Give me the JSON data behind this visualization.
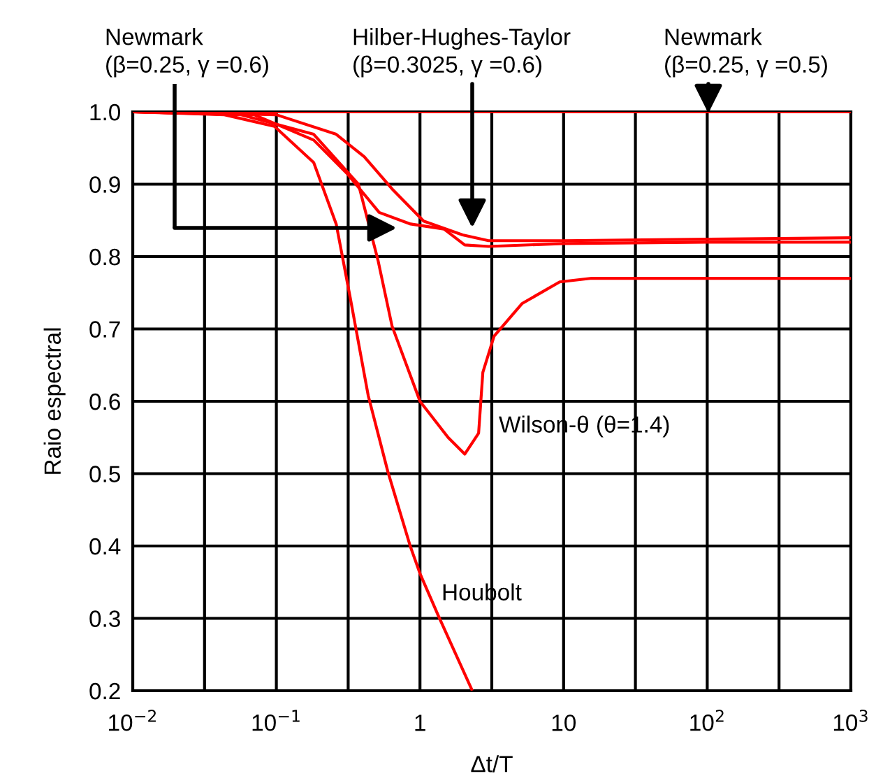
{
  "chart_data": {
    "type": "line",
    "xlabel": "Δt/T",
    "ylabel": "Raio espectral",
    "log": "x",
    "xlim": [
      0.01,
      1000
    ],
    "xticks": [
      {
        "value": 0.01,
        "label": "10$^{−2}$"
      },
      {
        "value": 0.1,
        "label": "10$^{−1}$"
      },
      1,
      10,
      {
        "value": 100,
        "label": "10$^{2}$"
      },
      {
        "value": 1000,
        "label": "10$^{3}$"
      }
    ],
    "ylim": [
      0.2,
      1.0
    ],
    "yticks": [
      {
        "value": 0.2,
        "label": "0.2"
      },
      {
        "value": 0.3,
        "label": "0.3"
      },
      {
        "value": 0.4,
        "label": "0.4"
      },
      {
        "value": 0.5,
        "label": "0.5"
      },
      {
        "value": 0.6,
        "label": "0.6"
      },
      {
        "value": 0.7,
        "label": "0.7"
      },
      {
        "value": 0.8,
        "label": "0.8"
      },
      {
        "value": 0.9,
        "label": "0.9"
      },
      {
        "value": 1.0,
        "label": "1.0"
      }
    ],
    "grid": true,
    "marker": "none",
    "line_style": "solid",
    "series": [
      {
        "color": "#ff0000",
        "x": [
          0.01,
          1000
        ],
        "values": [
          1.0,
          1.0
        ]
      },
      {
        "color": "#ff0000",
        "x": [
          0.01,
          0.0435,
          0.097,
          0.182,
          0.261,
          0.327,
          0.436,
          0.597,
          0.855,
          1.0,
          1.34,
          2.29
        ],
        "values": [
          1.0,
          0.996,
          0.98,
          0.93,
          0.845,
          0.743,
          0.608,
          0.503,
          0.4,
          0.362,
          0.304,
          0.202
        ]
      },
      {
        "color": "#ff0000",
        "x": [
          0.01,
          0.057,
          0.182,
          0.373,
          0.51,
          0.639,
          1.0,
          1.57,
          2.05,
          2.56,
          2.74,
          3.28,
          5.13,
          9.39,
          15.7,
          1000
        ],
        "values": [
          1.0,
          0.996,
          0.969,
          0.9,
          0.795,
          0.704,
          0.6,
          0.55,
          0.527,
          0.556,
          0.64,
          0.69,
          0.735,
          0.765,
          0.77,
          0.77
        ]
      },
      {
        "color": "#ff0000",
        "x": [
          0.01,
          0.07,
          0.182,
          0.31,
          0.52,
          0.86,
          1.47,
          2.05,
          3.0,
          10,
          100,
          1000
        ],
        "values": [
          1.0,
          0.996,
          0.961,
          0.915,
          0.861,
          0.845,
          0.838,
          0.816,
          0.814,
          0.818,
          0.82,
          0.82
        ]
      },
      {
        "color": "#ff0000",
        "x": [
          0.01,
          0.1,
          0.261,
          0.409,
          0.65,
          1.06,
          1.98,
          3.0,
          10,
          100,
          1000
        ],
        "values": [
          1.0,
          0.996,
          0.969,
          0.938,
          0.892,
          0.849,
          0.83,
          0.822,
          0.822,
          0.824,
          0.826
        ]
      }
    ],
    "annotations": [
      "Newmark\n(β=0.25, γ =0.6)",
      "Hilber-Hughes-Taylor\n(β=0.3025, γ =0.6)",
      "Newmark\n(β=0.25, γ =0.5)",
      "Wilson-θ (θ=1.4)",
      "Houbolt"
    ]
  }
}
